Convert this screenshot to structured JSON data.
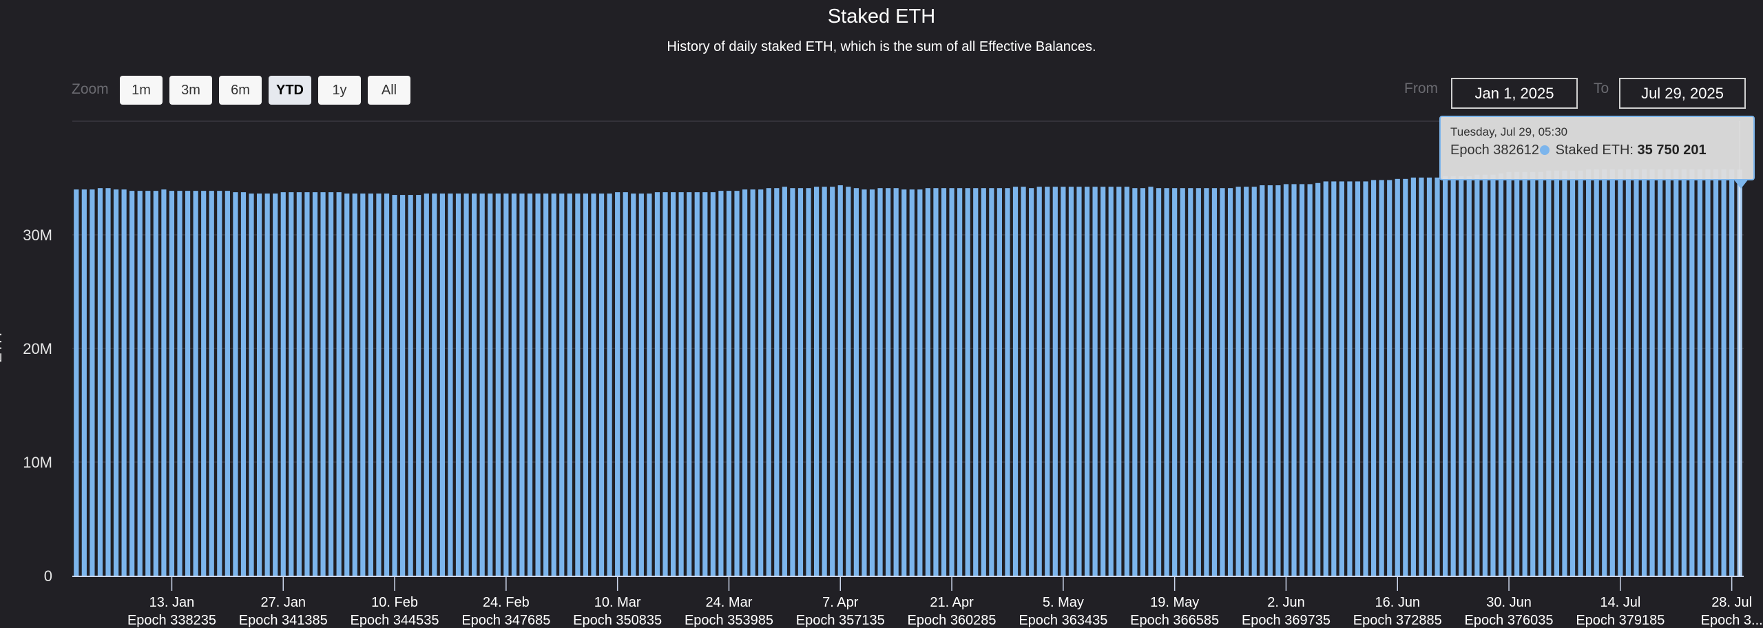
{
  "header": {
    "title": "Staked ETH",
    "subtitle": "History of daily staked ETH, which is the sum of all Effective Balances."
  },
  "zoom": {
    "label": "Zoom",
    "buttons": [
      {
        "label": "1m",
        "active": false
      },
      {
        "label": "3m",
        "active": false
      },
      {
        "label": "6m",
        "active": false
      },
      {
        "label": "YTD",
        "active": true
      },
      {
        "label": "1y",
        "active": false
      },
      {
        "label": "All",
        "active": false
      }
    ]
  },
  "range": {
    "from_label": "From",
    "from_value": "Jan 1, 2025",
    "to_label": "To",
    "to_value": "Jul 29, 2025"
  },
  "tooltip": {
    "date": "Tuesday, Jul 29, 05:30",
    "epoch": "Epoch 382612",
    "series_label": "Staked ETH: ",
    "value": "35 750 201"
  },
  "colors": {
    "bar": "#7cb5ec",
    "background": "#212025",
    "grid": "#3a3940"
  },
  "chart_data": {
    "type": "bar",
    "title": "Staked ETH",
    "subtitle": "History of daily staked ETH, which is the sum of all Effective Balances.",
    "ylabel": "ETH",
    "xlabel": "",
    "ylim": [
      0,
      40000000
    ],
    "yticks": [
      {
        "value": 0,
        "label": "0"
      },
      {
        "value": 10000000,
        "label": "10M"
      },
      {
        "value": 20000000,
        "label": "20M"
      },
      {
        "value": 30000000,
        "label": "30M"
      },
      {
        "value": 40000000,
        "label": ""
      }
    ],
    "x_start": "2025-01-01",
    "x_end": "2025-07-29",
    "xticks": [
      {
        "day": 12,
        "date": "13. Jan",
        "epoch": "Epoch 338235"
      },
      {
        "day": 26,
        "date": "27. Jan",
        "epoch": "Epoch 341385"
      },
      {
        "day": 40,
        "date": "10. Feb",
        "epoch": "Epoch 344535"
      },
      {
        "day": 54,
        "date": "24. Feb",
        "epoch": "Epoch 347685"
      },
      {
        "day": 68,
        "date": "10. Mar",
        "epoch": "Epoch 350835"
      },
      {
        "day": 82,
        "date": "24. Mar",
        "epoch": "Epoch 353985"
      },
      {
        "day": 96,
        "date": "7. Apr",
        "epoch": "Epoch 357135"
      },
      {
        "day": 110,
        "date": "21. Apr",
        "epoch": "Epoch 360285"
      },
      {
        "day": 124,
        "date": "5. May",
        "epoch": "Epoch 363435"
      },
      {
        "day": 138,
        "date": "19. May",
        "epoch": "Epoch 366585"
      },
      {
        "day": 152,
        "date": "2. Jun",
        "epoch": "Epoch 369735"
      },
      {
        "day": 166,
        "date": "16. Jun",
        "epoch": "Epoch 372885"
      },
      {
        "day": 180,
        "date": "30. Jun",
        "epoch": "Epoch 376035"
      },
      {
        "day": 194,
        "date": "14. Jul",
        "epoch": "Epoch 379185"
      },
      {
        "day": 208,
        "date": "28. Jul",
        "epoch": "Epoch 3..."
      }
    ],
    "values_millions": [
      33.99,
      33.99,
      33.99,
      34.11,
      34.11,
      33.99,
      33.99,
      33.87,
      33.87,
      33.87,
      33.87,
      33.99,
      33.87,
      33.87,
      33.87,
      33.87,
      33.87,
      33.87,
      33.87,
      33.87,
      33.75,
      33.75,
      33.63,
      33.63,
      33.63,
      33.63,
      33.75,
      33.75,
      33.75,
      33.75,
      33.75,
      33.75,
      33.75,
      33.75,
      33.63,
      33.63,
      33.63,
      33.63,
      33.63,
      33.63,
      33.51,
      33.51,
      33.51,
      33.51,
      33.63,
      33.63,
      33.63,
      33.63,
      33.63,
      33.63,
      33.63,
      33.63,
      33.63,
      33.63,
      33.63,
      33.63,
      33.63,
      33.63,
      33.63,
      33.63,
      33.63,
      33.63,
      33.63,
      33.63,
      33.63,
      33.63,
      33.63,
      33.63,
      33.75,
      33.75,
      33.63,
      33.63,
      33.63,
      33.75,
      33.75,
      33.75,
      33.75,
      33.75,
      33.75,
      33.75,
      33.75,
      33.87,
      33.87,
      33.87,
      33.99,
      33.99,
      33.99,
      34.11,
      34.11,
      34.23,
      34.11,
      34.11,
      34.11,
      34.23,
      34.23,
      34.23,
      34.36,
      34.23,
      34.11,
      33.99,
      33.99,
      34.11,
      34.11,
      34.11,
      33.99,
      33.99,
      33.99,
      34.11,
      34.11,
      34.11,
      34.11,
      34.11,
      34.11,
      34.11,
      34.11,
      34.11,
      34.11,
      34.11,
      34.23,
      34.23,
      34.11,
      34.23,
      34.23,
      34.23,
      34.23,
      34.23,
      34.23,
      34.23,
      34.23,
      34.23,
      34.23,
      34.23,
      34.23,
      34.11,
      34.11,
      34.23,
      34.11,
      34.11,
      34.11,
      34.11,
      34.11,
      34.11,
      34.11,
      34.11,
      34.11,
      34.11,
      34.23,
      34.23,
      34.23,
      34.36,
      34.36,
      34.36,
      34.46,
      34.46,
      34.46,
      34.46,
      34.56,
      34.7,
      34.7,
      34.7,
      34.7,
      34.7,
      34.7,
      34.82,
      34.82,
      34.82,
      34.92,
      34.92,
      35.04,
      35.04,
      35.04,
      35.04,
      35.16,
      35.16,
      35.16,
      35.16,
      35.29,
      35.29,
      35.29,
      35.41,
      35.53,
      35.53,
      35.53,
      35.53,
      35.53,
      35.65,
      35.65,
      35.65,
      35.65,
      35.65,
      35.75,
      35.75,
      35.75,
      35.75,
      35.75,
      35.75,
      35.75,
      35.75,
      35.75,
      35.75,
      35.75,
      35.75,
      35.75,
      35.75,
      35.75,
      35.75,
      35.75,
      35.75,
      35.75,
      35.750201
    ],
    "grid": true,
    "legend": "none",
    "hovered_index": 209
  }
}
